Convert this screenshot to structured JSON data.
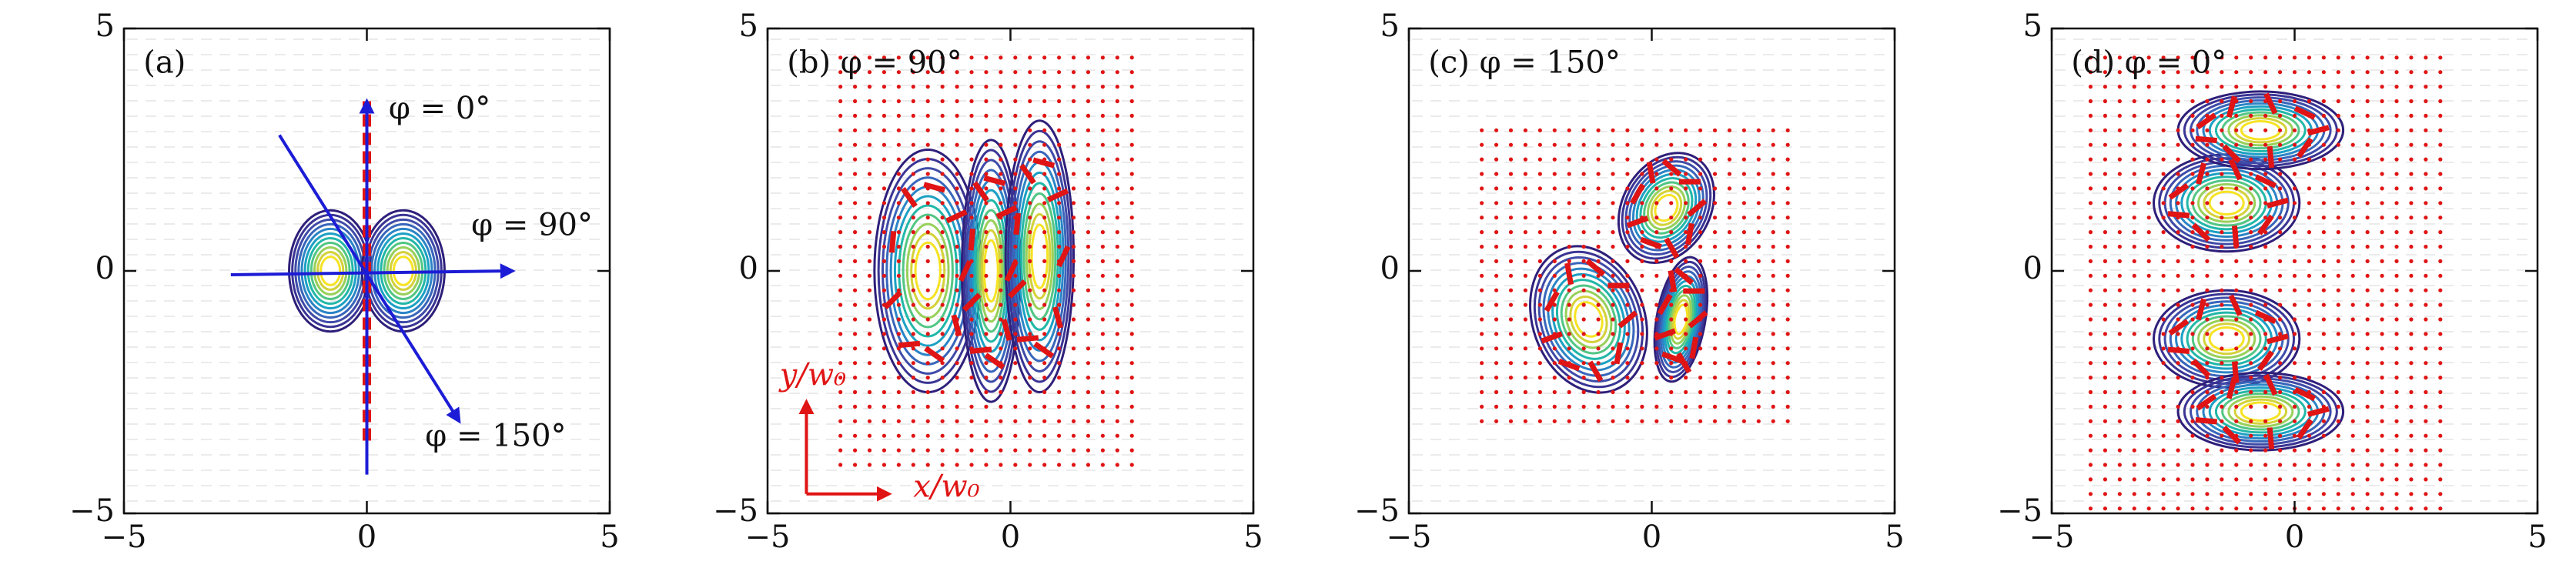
{
  "chart_data": [
    {
      "type": "contour",
      "annotations": [
        "(a)",
        "φ = 0°",
        "φ = 90°",
        "φ = 150°"
      ],
      "xlim": [
        -5,
        5
      ],
      "ylim": [
        -5,
        5
      ],
      "xticks": [
        {
          "value": -5,
          "label": "−5"
        },
        0,
        5
      ],
      "yticks": [
        {
          "value": -5,
          "label": "−5"
        },
        0,
        5
      ]
    },
    {
      "type": "contour",
      "annotations": [
        "(b) φ = 90°",
        "y/w₀",
        "x/w₀"
      ],
      "xlim": [
        -5,
        5
      ],
      "ylim": [
        -5,
        5
      ],
      "xticks": [
        {
          "value": -5,
          "label": "−5"
        },
        0,
        5
      ],
      "yticks": [
        {
          "value": -5,
          "label": "−5"
        },
        0,
        5
      ]
    },
    {
      "type": "contour",
      "annotations": [
        "(c) φ = 150°"
      ],
      "xlim": [
        -5,
        5
      ],
      "ylim": [
        -5,
        5
      ],
      "xticks": [
        {
          "value": -5,
          "label": "−5"
        },
        0,
        5
      ],
      "yticks": [
        {
          "value": -5,
          "label": "−5"
        },
        0,
        5
      ]
    },
    {
      "type": "contour",
      "annotations": [
        "(d) φ = 0°"
      ],
      "xlim": [
        -5,
        5
      ],
      "ylim": [
        -5,
        5
      ],
      "xticks": [
        {
          "value": -5,
          "label": "−5"
        },
        0,
        5
      ],
      "yticks": [
        {
          "value": -5,
          "label": "−5"
        },
        0,
        5
      ]
    }
  ]
}
